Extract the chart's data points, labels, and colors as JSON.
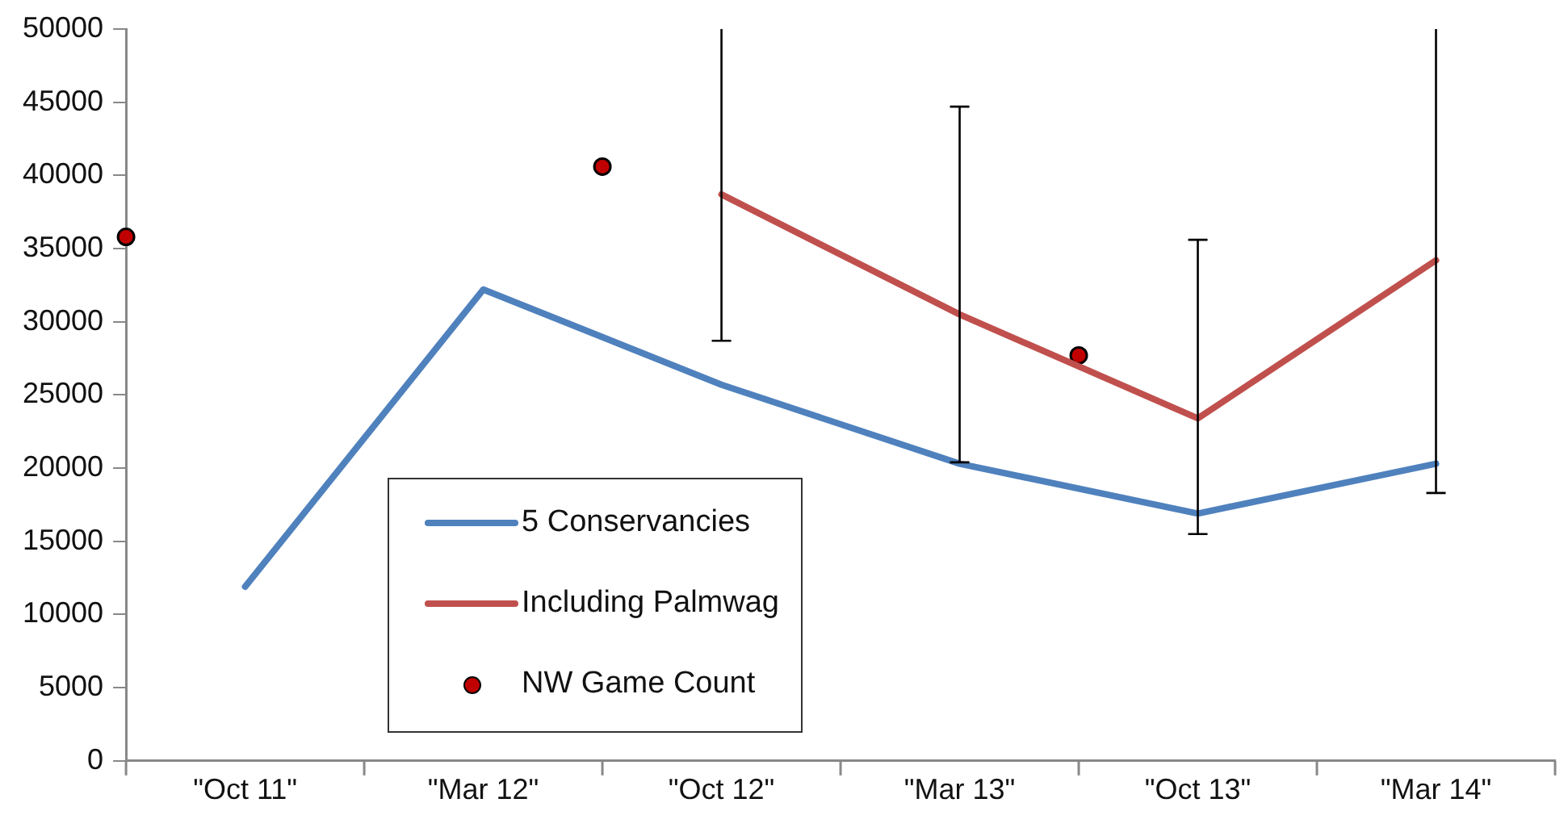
{
  "chart_data": {
    "type": "line",
    "categories": [
      null,
      "\"Oct 11\"",
      null,
      "\"Mar 12\"",
      null,
      "\"Oct 12\"",
      null,
      "\"Mar 13\"",
      null,
      "\"Oct 13\"",
      null,
      "\"Mar 14\"",
      null
    ],
    "series": [
      {
        "name": "5 Conservancies",
        "color": "#4f81bd",
        "values": [
          null,
          11900,
          null,
          32200,
          null,
          25700,
          null,
          20300,
          null,
          16900,
          null,
          20300,
          null
        ]
      },
      {
        "name": "Including Palmwag",
        "color": "#c0504d",
        "values": [
          null,
          null,
          null,
          null,
          null,
          38700,
          null,
          30500,
          null,
          23400,
          null,
          34200,
          null
        ],
        "errors": [
          null,
          null,
          null,
          null,
          null,
          [
            28700,
            50000
          ],
          null,
          [
            20400,
            44700
          ],
          null,
          [
            15500,
            35600
          ],
          null,
          [
            18300,
            50000
          ],
          null
        ]
      },
      {
        "name": "NW Game Count",
        "type": "scatter",
        "marker": "circle",
        "color": "#c00000",
        "values": [
          35800,
          null,
          null,
          null,
          40600,
          null,
          null,
          null,
          27700,
          null,
          null,
          null,
          null
        ]
      }
    ],
    "ylim": [
      0,
      50000
    ],
    "yticks": [
      0,
      5000,
      10000,
      15000,
      20000,
      25000,
      30000,
      35000,
      40000,
      45000,
      50000
    ],
    "grid": false,
    "legend": "bottom left"
  }
}
